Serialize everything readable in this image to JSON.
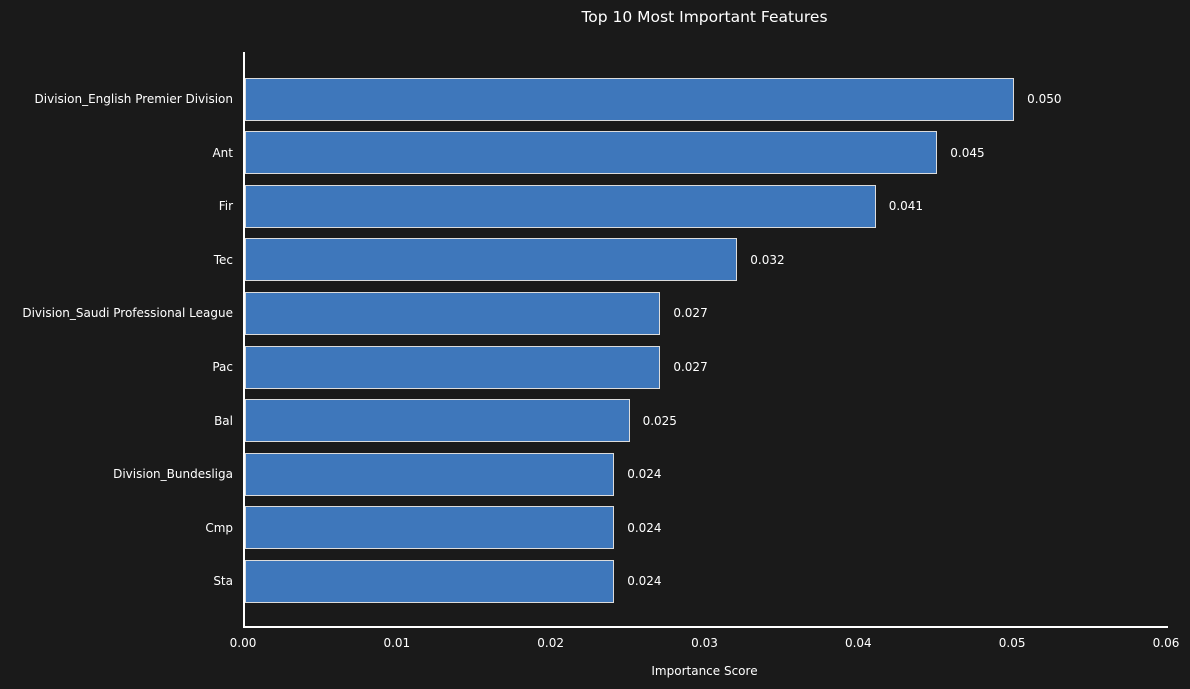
{
  "colors": {
    "background": "#1a1a1a",
    "bar_fill": "#3e77bb",
    "bar_edge": "#dcdcdc",
    "axis": "#ffffff",
    "text": "#ffffff"
  },
  "chart_data": {
    "type": "bar",
    "orientation": "horizontal",
    "title": "Top 10 Most Important Features",
    "xlabel": "Importance Score",
    "ylabel": "",
    "categories": [
      "Division_English Premier Division",
      "Ant",
      "Fir",
      "Tec",
      "Division_Saudi Professional League",
      "Pac",
      "Bal",
      "Division_Bundesliga",
      "Cmp",
      "Sta"
    ],
    "values": [
      0.05,
      0.045,
      0.041,
      0.032,
      0.027,
      0.027,
      0.025,
      0.024,
      0.024,
      0.024
    ],
    "value_labels": [
      "0.050",
      "0.045",
      "0.041",
      "0.032",
      "0.027",
      "0.027",
      "0.025",
      "0.024",
      "0.024",
      "0.024"
    ],
    "xticks": [
      "0.00",
      "0.01",
      "0.02",
      "0.03",
      "0.04",
      "0.05",
      "0.06"
    ],
    "xlim": [
      0,
      0.06
    ],
    "grid": false,
    "legend": "none",
    "background_style": "dark"
  }
}
